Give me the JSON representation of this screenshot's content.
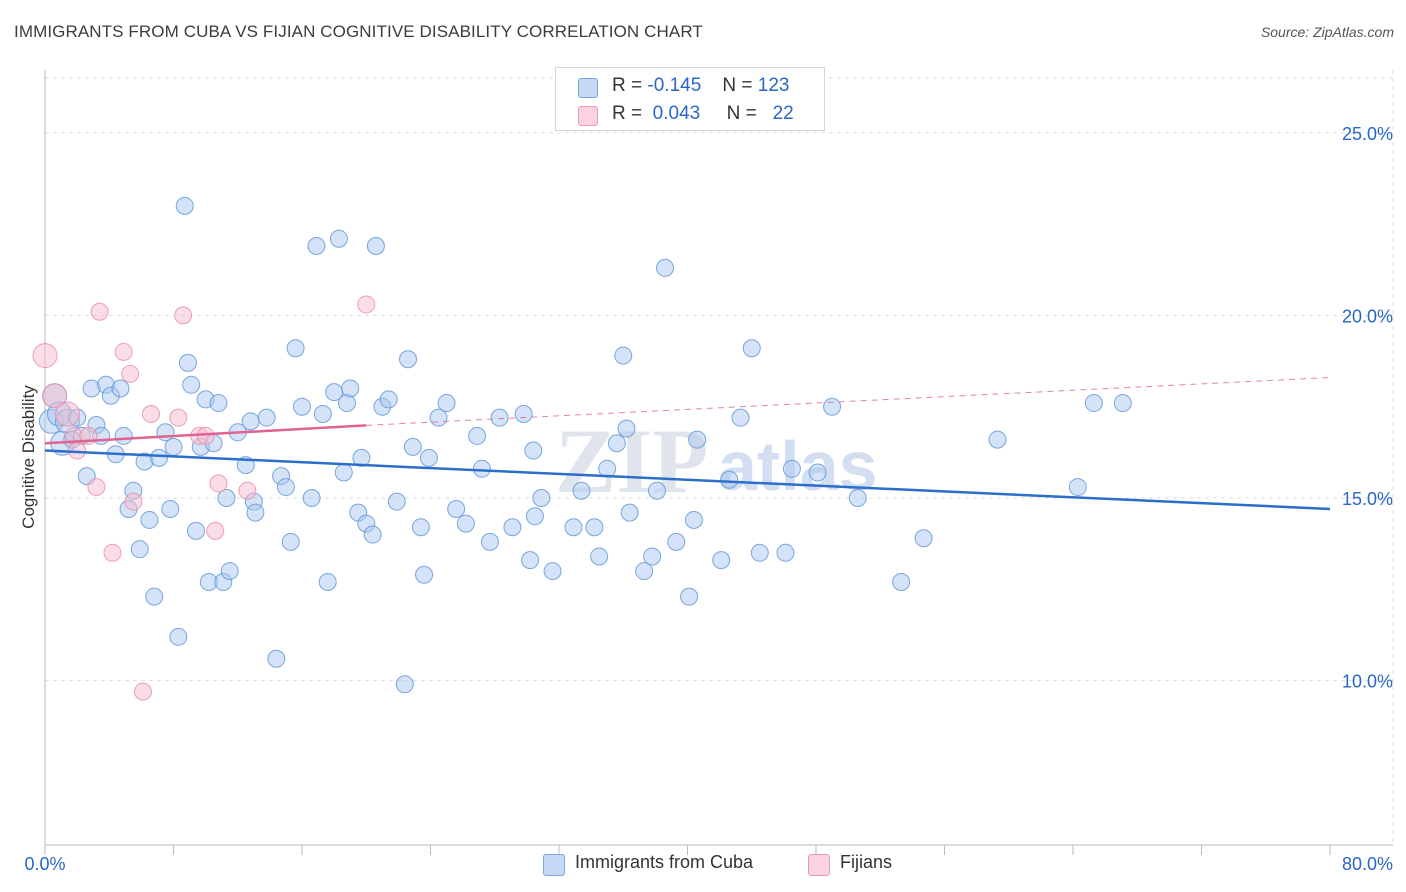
{
  "title": "IMMIGRANTS FROM CUBA VS FIJIAN COGNITIVE DISABILITY CORRELATION CHART",
  "source": "Source: ZipAtlas.com",
  "watermark": {
    "zip": "ZIP",
    "atlas": "atlas"
  },
  "legend": {
    "rows": [
      {
        "r_label": "R =",
        "r_value": "-0.145",
        "n_label": "N =",
        "n_value": "123"
      },
      {
        "r_label": "R =",
        "r_value": "0.043",
        "n_label": "N =",
        "n_value": "22"
      }
    ]
  },
  "bottom_legend": {
    "series1": "Immigrants from Cuba",
    "series2": "Fijians"
  },
  "colors": {
    "blue_fill": "#a9c7ef",
    "blue_stroke": "#5d92d6",
    "blue_line": "#2b6fcb",
    "pink_fill": "#f6bccd",
    "pink_stroke": "#e88aa6",
    "pink_line": "#e0628f",
    "tick_color": "#2a66c8",
    "grid": "#dddddd"
  },
  "chart_data": {
    "type": "scatter",
    "title": "IMMIGRANTS FROM CUBA VS FIJIAN COGNITIVE DISABILITY CORRELATION CHART",
    "xlabel": "",
    "ylabel": "Cognitive Disability",
    "xlim": [
      0,
      80
    ],
    "ylim": [
      5.5,
      26.5
    ],
    "x_tick_labels": [
      "0.0%",
      "80.0%"
    ],
    "y_ticks": [
      10,
      15,
      20,
      25
    ],
    "y_tick_labels": [
      "10.0%",
      "15.0%",
      "20.0%",
      "25.0%"
    ],
    "grid": true,
    "legend_position": "top-center",
    "series": [
      {
        "name": "Immigrants from Cuba",
        "color": "#a9c7ef",
        "points": [
          [
            0.4,
            17.1
          ],
          [
            0.6,
            17.8
          ],
          [
            0.9,
            17.3
          ],
          [
            1.1,
            16.5
          ],
          [
            1.4,
            17.1
          ],
          [
            1.7,
            16.6
          ],
          [
            2.0,
            17.2
          ],
          [
            2.3,
            16.7
          ],
          [
            2.6,
            15.6
          ],
          [
            2.9,
            18.0
          ],
          [
            3.2,
            17.0
          ],
          [
            3.5,
            16.7
          ],
          [
            3.8,
            18.1
          ],
          [
            4.1,
            17.8
          ],
          [
            4.4,
            16.2
          ],
          [
            4.7,
            18.0
          ],
          [
            4.9,
            16.7
          ],
          [
            5.2,
            14.7
          ],
          [
            5.5,
            15.2
          ],
          [
            5.9,
            13.6
          ],
          [
            6.2,
            16.0
          ],
          [
            6.5,
            14.4
          ],
          [
            6.8,
            12.3
          ],
          [
            7.1,
            16.1
          ],
          [
            7.5,
            16.8
          ],
          [
            7.8,
            14.7
          ],
          [
            8.0,
            16.4
          ],
          [
            8.3,
            11.2
          ],
          [
            8.7,
            23.0
          ],
          [
            8.9,
            18.7
          ],
          [
            9.1,
            18.1
          ],
          [
            9.4,
            14.1
          ],
          [
            9.7,
            16.4
          ],
          [
            10.0,
            17.7
          ],
          [
            10.2,
            12.7
          ],
          [
            10.5,
            16.5
          ],
          [
            10.8,
            17.6
          ],
          [
            11.1,
            12.7
          ],
          [
            11.3,
            15.0
          ],
          [
            11.5,
            13.0
          ],
          [
            12.0,
            16.8
          ],
          [
            12.5,
            15.9
          ],
          [
            12.8,
            17.1
          ],
          [
            13.0,
            14.9
          ],
          [
            13.1,
            14.6
          ],
          [
            13.8,
            17.2
          ],
          [
            14.4,
            10.6
          ],
          [
            14.7,
            15.6
          ],
          [
            15.0,
            15.3
          ],
          [
            15.3,
            13.8
          ],
          [
            15.6,
            19.1
          ],
          [
            16.0,
            17.5
          ],
          [
            16.6,
            15.0
          ],
          [
            16.9,
            21.9
          ],
          [
            17.3,
            17.3
          ],
          [
            17.6,
            12.7
          ],
          [
            18.0,
            17.9
          ],
          [
            18.3,
            22.1
          ],
          [
            18.6,
            15.7
          ],
          [
            18.8,
            17.6
          ],
          [
            19.0,
            18.0
          ],
          [
            19.5,
            14.6
          ],
          [
            19.7,
            16.1
          ],
          [
            20.0,
            14.3
          ],
          [
            20.4,
            14.0
          ],
          [
            20.6,
            21.9
          ],
          [
            21.0,
            17.5
          ],
          [
            21.4,
            17.7
          ],
          [
            21.9,
            14.9
          ],
          [
            22.4,
            9.9
          ],
          [
            22.6,
            18.8
          ],
          [
            22.9,
            16.4
          ],
          [
            23.4,
            14.2
          ],
          [
            23.6,
            12.9
          ],
          [
            23.9,
            16.1
          ],
          [
            24.5,
            17.2
          ],
          [
            25.0,
            17.6
          ],
          [
            25.6,
            14.7
          ],
          [
            26.2,
            14.3
          ],
          [
            26.9,
            16.7
          ],
          [
            27.2,
            15.8
          ],
          [
            27.7,
            13.8
          ],
          [
            28.3,
            17.2
          ],
          [
            29.1,
            14.2
          ],
          [
            29.8,
            17.3
          ],
          [
            30.2,
            13.3
          ],
          [
            30.4,
            16.3
          ],
          [
            30.5,
            14.5
          ],
          [
            30.9,
            15.0
          ],
          [
            31.6,
            13.0
          ],
          [
            32.9,
            14.2
          ],
          [
            33.4,
            15.2
          ],
          [
            34.2,
            14.2
          ],
          [
            34.5,
            13.4
          ],
          [
            35.0,
            15.8
          ],
          [
            35.6,
            16.5
          ],
          [
            36.0,
            18.9
          ],
          [
            36.2,
            16.9
          ],
          [
            36.4,
            14.6
          ],
          [
            37.3,
            13.0
          ],
          [
            37.8,
            13.4
          ],
          [
            38.1,
            15.2
          ],
          [
            38.6,
            21.3
          ],
          [
            39.3,
            13.8
          ],
          [
            40.1,
            12.3
          ],
          [
            40.4,
            14.4
          ],
          [
            40.6,
            16.6
          ],
          [
            42.1,
            13.3
          ],
          [
            42.6,
            15.5
          ],
          [
            43.3,
            17.2
          ],
          [
            44.0,
            19.1
          ],
          [
            44.5,
            13.5
          ],
          [
            46.1,
            13.5
          ],
          [
            46.5,
            15.8
          ],
          [
            48.1,
            15.7
          ],
          [
            49.0,
            17.5
          ],
          [
            50.6,
            15.0
          ],
          [
            53.3,
            12.7
          ],
          [
            54.7,
            13.9
          ],
          [
            59.3,
            16.6
          ],
          [
            64.3,
            15.3
          ],
          [
            65.3,
            17.6
          ],
          [
            67.1,
            17.6
          ]
        ]
      },
      {
        "name": "Fijians",
        "color": "#f6bccd",
        "points": [
          [
            0.0,
            18.9
          ],
          [
            0.6,
            17.8
          ],
          [
            1.4,
            17.3
          ],
          [
            1.8,
            16.7
          ],
          [
            2.0,
            16.3
          ],
          [
            2.7,
            16.7
          ],
          [
            3.2,
            15.3
          ],
          [
            3.4,
            20.1
          ],
          [
            4.2,
            13.5
          ],
          [
            4.9,
            19.0
          ],
          [
            5.3,
            18.4
          ],
          [
            5.5,
            14.9
          ],
          [
            6.1,
            9.7
          ],
          [
            6.6,
            17.3
          ],
          [
            8.3,
            17.2
          ],
          [
            8.6,
            20.0
          ],
          [
            9.6,
            16.7
          ],
          [
            10.0,
            16.7
          ],
          [
            10.6,
            14.1
          ],
          [
            10.8,
            15.4
          ],
          [
            12.6,
            15.2
          ],
          [
            20.0,
            20.3
          ]
        ]
      }
    ],
    "trend_lines": [
      {
        "series": "Immigrants from Cuba",
        "x": [
          0,
          80
        ],
        "y": [
          16.3,
          14.7
        ]
      },
      {
        "series": "Fijians",
        "x": [
          0,
          20
        ],
        "y": [
          16.5,
          16.99
        ]
      },
      {
        "series": "Fijians (extrapolated)",
        "x": [
          20,
          80
        ],
        "y": [
          16.99,
          18.3
        ]
      }
    ]
  }
}
